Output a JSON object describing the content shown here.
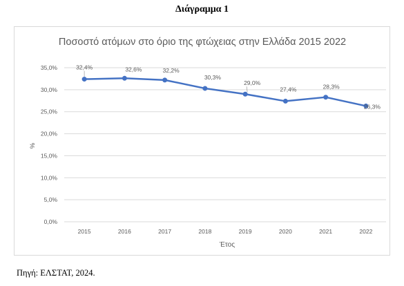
{
  "figure": {
    "heading": "Διάγραμμα 1",
    "source_note": "Πηγή: ΕΛΣΤΑΤ, 2024."
  },
  "chart_data": {
    "type": "line",
    "title": "Ποσοστό ατόμων στο όριο της φτώχειας στην Ελλάδα 2015 2022",
    "xlabel": "Έτος",
    "ylabel": "%",
    "categories": [
      "2015",
      "2016",
      "2017",
      "2018",
      "2019",
      "2020",
      "2021",
      "2022"
    ],
    "series": [
      {
        "values": [
          32.4,
          32.6,
          32.2,
          30.3,
          29.0,
          27.4,
          28.3,
          26.3
        ],
        "labels": [
          "32,4%",
          "32,6%",
          "32,2%",
          "30,3%",
          "29,0%",
          "27,4%",
          "28,3%",
          "26,3%"
        ],
        "color": "#4472c4"
      }
    ],
    "ylim": [
      0,
      35
    ],
    "yticks": [
      0,
      5,
      10,
      15,
      20,
      25,
      30,
      35
    ],
    "ytick_labels": [
      "0,0%",
      "5,0%",
      "10,0%",
      "15,0%",
      "20,0%",
      "25,0%",
      "30,0%",
      "35,0%"
    ],
    "grid": true,
    "gridline_color": "#d9d9d9",
    "legend": "none"
  }
}
